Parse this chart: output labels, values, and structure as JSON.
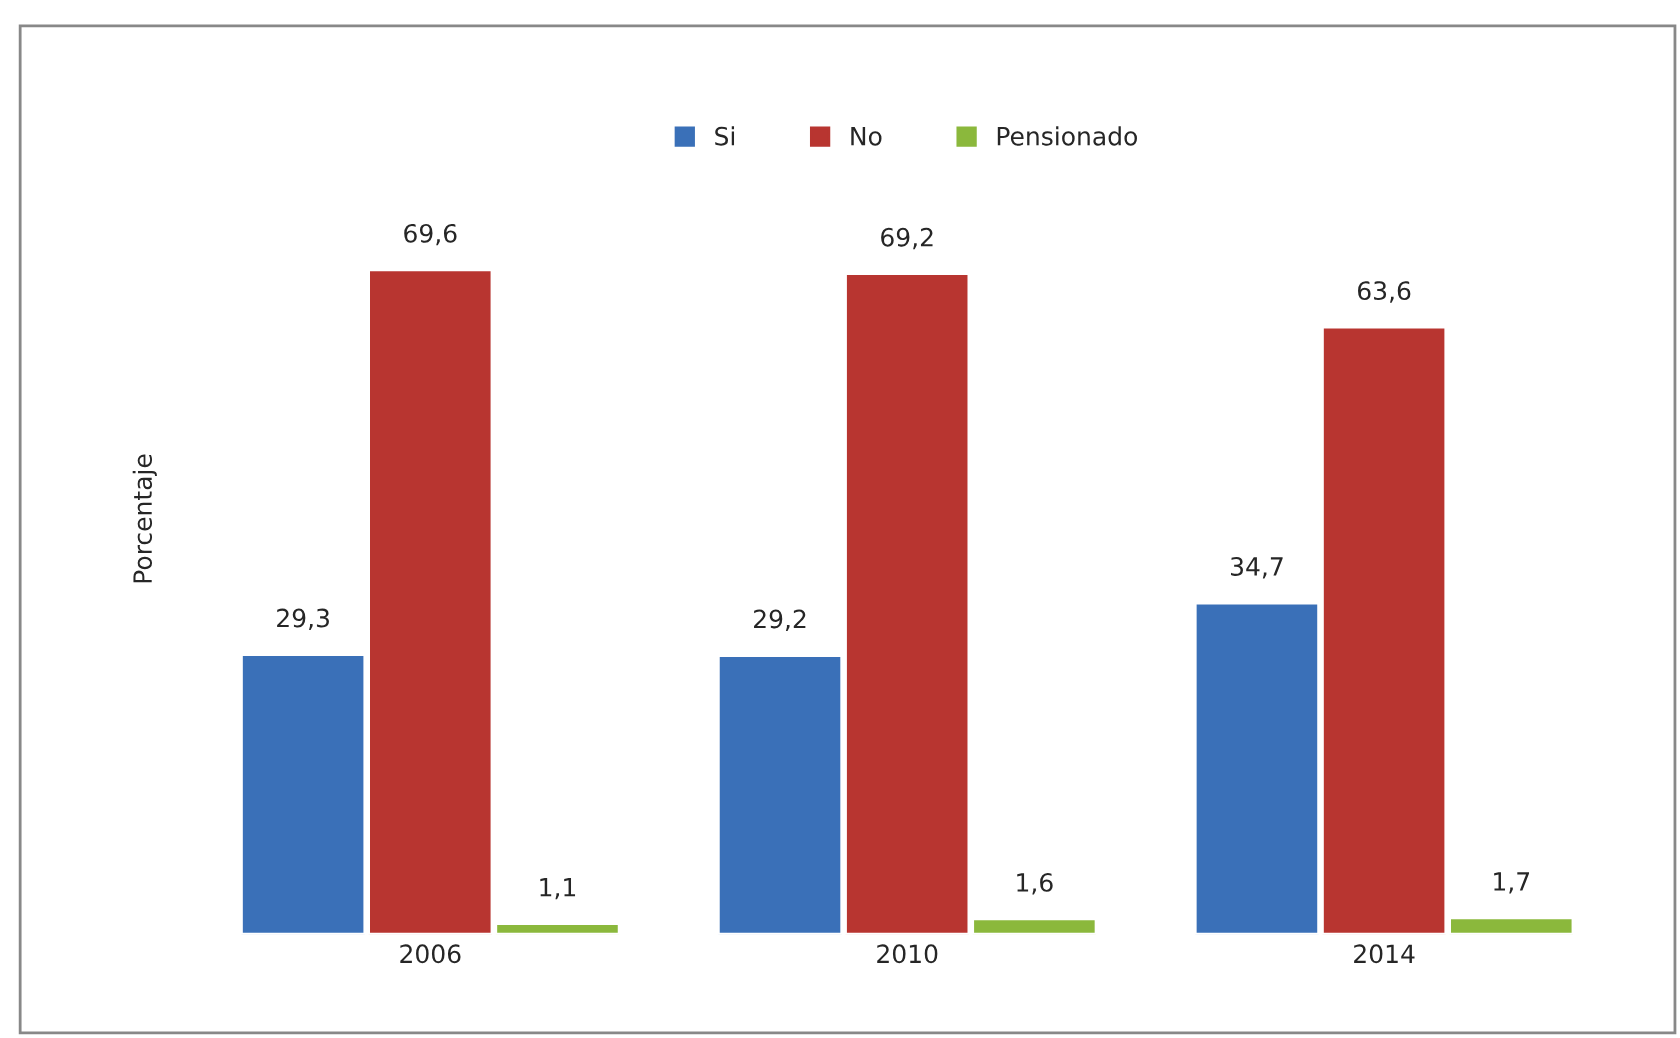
{
  "chart_data": {
    "type": "bar",
    "ylabel": "Porcentaje",
    "categories": [
      "2006",
      "2010",
      "2014"
    ],
    "series": [
      {
        "name": "Si",
        "color": "#3a70b8",
        "values": [
          29.3,
          29.2,
          34.7
        ],
        "value_labels": [
          "29,3",
          "29,2",
          "34,7"
        ]
      },
      {
        "name": "No",
        "color": "#b83530",
        "values": [
          69.6,
          69.2,
          63.6
        ],
        "value_labels": [
          "69,6",
          "69,2",
          "63,6"
        ]
      },
      {
        "name": "Pensionado",
        "color": "#8bb83c",
        "values": [
          1.1,
          1.6,
          1.7
        ],
        "value_labels": [
          "1,1",
          "1,6",
          "1,7"
        ]
      }
    ],
    "legend": "top",
    "grid": false,
    "tick_labels": "x"
  }
}
